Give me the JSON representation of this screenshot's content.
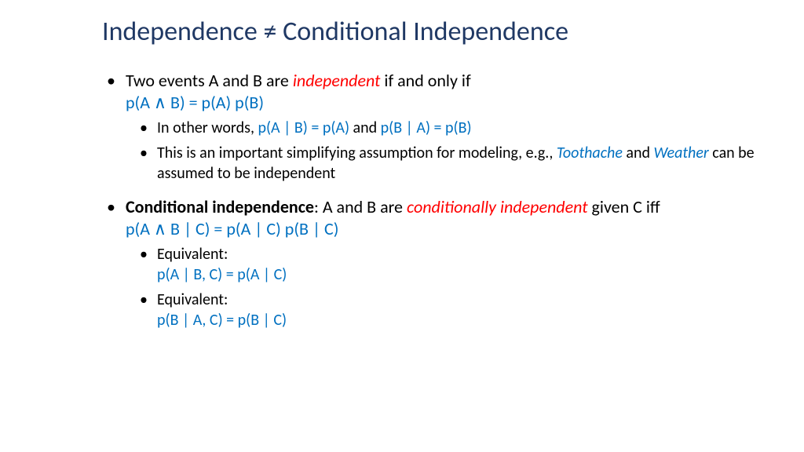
{
  "colors": {
    "title": "#1f3864",
    "emphasis_red": "#ff0000",
    "formula_blue": "#0070c0",
    "body": "#000000",
    "background": "#ffffff"
  },
  "typography": {
    "title_fontsize": 34,
    "body_fontsize": 22,
    "sub_fontsize": 20,
    "font_family": "Calibri"
  },
  "title": "Independence ≠ Conditional Independence",
  "b1": {
    "t1": "Two events A and B are ",
    "t2": "independent",
    "t3": " if and only if",
    "formula": "p(A ∧ B) = p(A) p(B)",
    "s1": {
      "t1": "In other words, ",
      "f1": "p(A | B) = p(A)",
      "t2": " and ",
      "f2": "p(B | A) = p(B)"
    },
    "s2": {
      "t1": "This is an important simplifying assumption for modeling, e.g., ",
      "e1": "Toothache",
      "t2": " and ",
      "e2": "Weather",
      "t3": " can be assumed to be independent"
    }
  },
  "b2": {
    "t1": "Conditional independence",
    "t2": ": A and B are ",
    "t3": "conditionally independent",
    "t4": " given C iff",
    "formula": "p(A ∧ B | C) = p(A | C) p(B | C)",
    "s1": {
      "t1": "Equivalent:",
      "f1": "p(A | B, C) = p(A | C)"
    },
    "s2": {
      "t1": "Equivalent:",
      "f1": "p(B | A, C) = p(B | C)"
    }
  }
}
